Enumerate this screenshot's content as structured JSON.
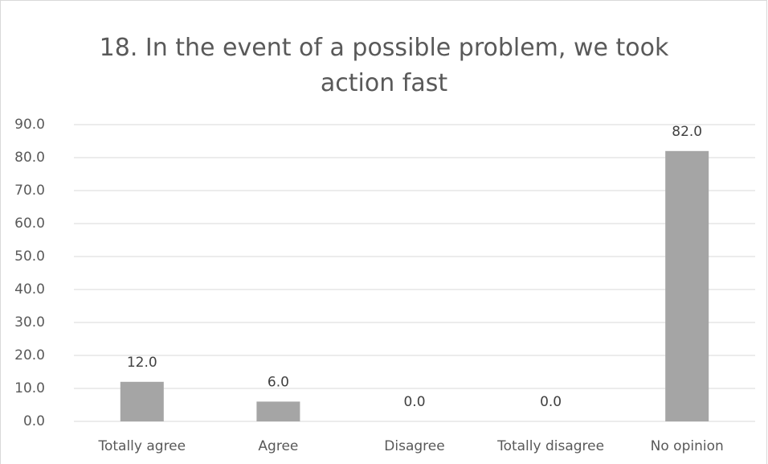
{
  "chart_data": {
    "type": "bar",
    "title": "18. In the event of a possible problem, we took action fast",
    "categories": [
      "Totally agree",
      "Agree",
      "Disagree",
      "Totally disagree",
      "No opinion"
    ],
    "values": [
      12,
      6,
      0,
      0,
      82
    ],
    "value_labels": [
      "12.0",
      "6.0",
      "0.0",
      "0.0",
      "82.0"
    ],
    "color": "#a5a5a5",
    "ylim": [
      0,
      90
    ],
    "yticks": [
      {
        "value": 0,
        "label": "0.0"
      },
      {
        "value": 10,
        "label": "10.0"
      },
      {
        "value": 20,
        "label": "20.0"
      },
      {
        "value": 30,
        "label": "30.0"
      },
      {
        "value": 40,
        "label": "40.0"
      },
      {
        "value": 50,
        "label": "50.0"
      },
      {
        "value": 60,
        "label": "60.0"
      },
      {
        "value": 70,
        "label": "70.0"
      },
      {
        "value": 80,
        "label": "80.0"
      },
      {
        "value": 90,
        "label": "90.0"
      }
    ],
    "grid": true
  }
}
